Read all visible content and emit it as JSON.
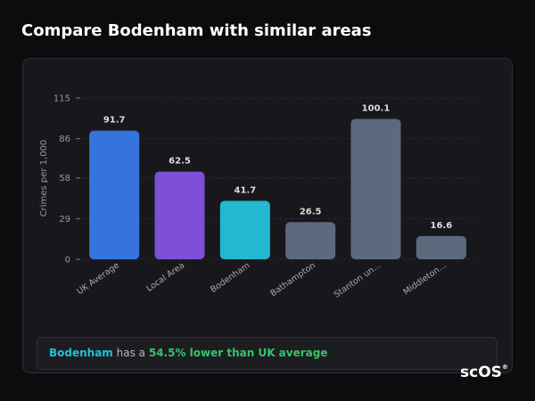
{
  "header": {
    "title": "Compare Bodenham with similar areas"
  },
  "chart_data": {
    "type": "bar",
    "y_label": "Crimes per 1,000",
    "categories": [
      "UK Average",
      "Local Area",
      "Bodenham",
      "Bathampton",
      "Stanton un...",
      "Middleton..."
    ],
    "values": [
      91.7,
      62.5,
      41.7,
      26.5,
      100.1,
      16.6
    ],
    "colors": [
      "#3574dc",
      "#7c4fd6",
      "#22b8cf",
      "#5d6a7d",
      "#5d6a7d",
      "#5d6a7d"
    ],
    "ylim": [
      0,
      115
    ],
    "yticks": [
      0,
      29,
      58,
      86,
      115
    ],
    "grid": true
  },
  "summary": {
    "area": "Bodenham",
    "text": "has a",
    "comparison": "54.5% lower than UK average"
  },
  "logo": {
    "text": "scOS",
    "mark": "®"
  }
}
